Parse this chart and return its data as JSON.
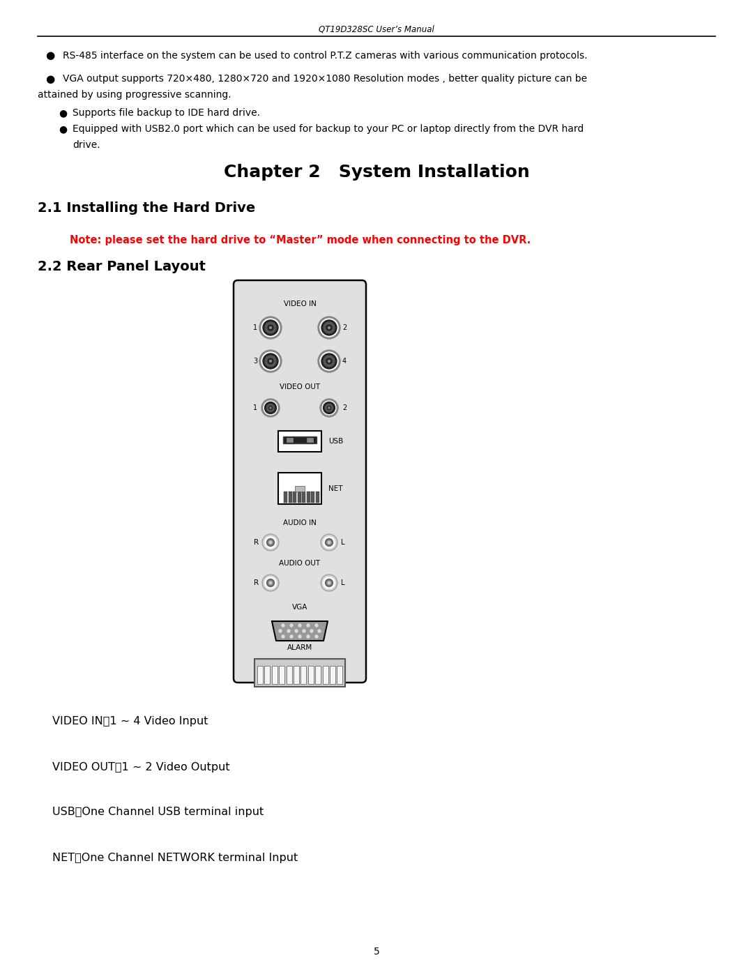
{
  "header_text": "QT19D328SC User’s Manual",
  "bullet1": "RS-485 interface on the system can be used to control P.T.Z cameras with various communication protocols.",
  "bullet2a": "VGA output supports 720×480, 1280×720 and 1920×1080 Resolution modes , better quality picture can be",
  "bullet2b": "attained by using progressive scanning.",
  "bullet3": "Supports file backup to IDE hard drive.",
  "bullet4a": "Equipped with USB2.0 port which can be used for backup to your PC or laptop directly from the DVR hard",
  "bullet4b": "drive.",
  "chapter_title": "Chapter 2   System Installation",
  "section1_title": "2.1 Installing the Hard Drive",
  "note_text": "Note: please set the hard drive to “Master” mode when connecting to the DVR.",
  "section2_title": "2.2 Rear Panel Layout",
  "label1": "VIDEO IN：1 ~ 4 Video Input",
  "label2": "VIDEO OUT：1 ~ 2 Video Output",
  "label3": "USB：One Channel USB terminal input",
  "label4": "NET：One Channel NETWORK terminal Input",
  "page_number": "5",
  "bg_color": "#ffffff",
  "note_color": "#ff0000"
}
